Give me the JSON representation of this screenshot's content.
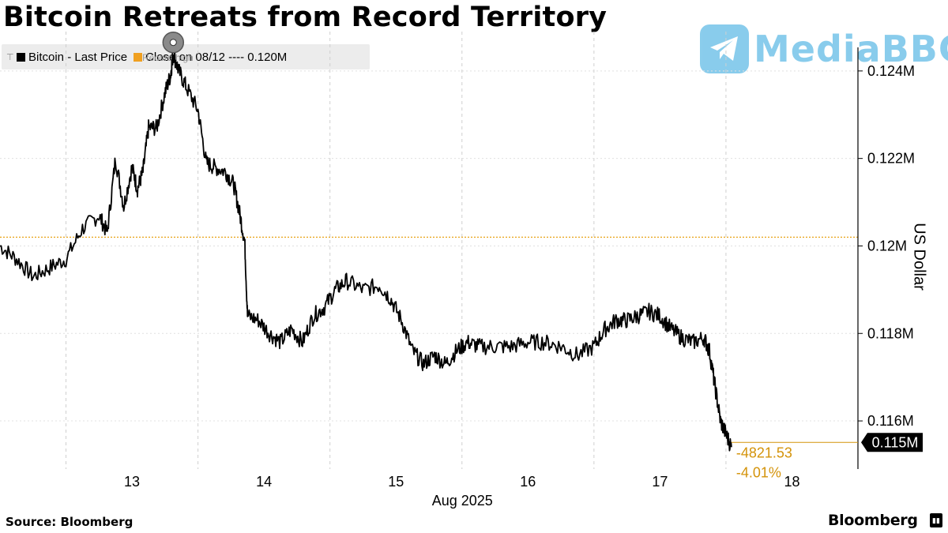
{
  "title": "Bitcoin Retreats from Record Territory",
  "legend": {
    "series_label": "Bitcoin - Last Price",
    "close_label": "Close on 08/12 ---- 0.120M"
  },
  "annotation": {
    "record_label": "Record high",
    "change_abs": "-4821.53",
    "change_pct": "-4.01%",
    "last_value_label": "0.115M"
  },
  "watermark": "MediaBBG",
  "ylabel": "US Dollar",
  "source": "Source: Bloomberg",
  "brand": "Bloomberg",
  "colors": {
    "line": "#000000",
    "close_ref": "#e8a317",
    "annotation": "#d4930a",
    "grid": "#cfcfcf"
  },
  "chart_data": {
    "type": "line",
    "title": "Bitcoin Retreats from Record Territory",
    "xlabel": "Aug 2025",
    "ylabel": "US Dollar",
    "x_ticks": [
      "13",
      "14",
      "15",
      "16",
      "17",
      "18"
    ],
    "y_ticks": [
      "0.116M",
      "0.118M",
      "0.12M",
      "0.122M",
      "0.124M"
    ],
    "ylim": [
      114900,
      124900
    ],
    "xlim": [
      "2025-08-12 12:00",
      "2025-08-18 24:00"
    ],
    "close_reference": {
      "date": "08/12",
      "value": 120200
    },
    "last_value": 115380,
    "series": [
      {
        "name": "Bitcoin - Last Price",
        "points": [
          [
            "2025-08-12 12:00",
            120000
          ],
          [
            "2025-08-12 15:00",
            119700
          ],
          [
            "2025-08-12 18:00",
            119300
          ],
          [
            "2025-08-12 21:00",
            119500
          ],
          [
            "2025-08-13 00:00",
            119700
          ],
          [
            "2025-08-13 03:00",
            120400
          ],
          [
            "2025-08-13 06:00",
            120700
          ],
          [
            "2025-08-13 07:30",
            120300
          ],
          [
            "2025-08-13 09:00",
            122000
          ],
          [
            "2025-08-13 10:30",
            120900
          ],
          [
            "2025-08-13 12:00",
            121800
          ],
          [
            "2025-08-13 13:00",
            121300
          ],
          [
            "2025-08-13 14:00",
            121700
          ],
          [
            "2025-08-13 15:00",
            122700
          ],
          [
            "2025-08-13 16:30",
            122700
          ],
          [
            "2025-08-13 18:00",
            123500
          ],
          [
            "2025-08-13 19:00",
            123900
          ],
          [
            "2025-08-13 19:30",
            124400
          ],
          [
            "2025-08-13 20:30",
            124000
          ],
          [
            "2025-08-13 22:00",
            123600
          ],
          [
            "2025-08-14 00:00",
            123100
          ],
          [
            "2025-08-14 01:30",
            121900
          ],
          [
            "2025-08-14 03:00",
            121800
          ],
          [
            "2025-08-14 05:00",
            121700
          ],
          [
            "2025-08-14 06:30",
            121400
          ],
          [
            "2025-08-14 07:30",
            120800
          ],
          [
            "2025-08-14 08:30",
            120100
          ],
          [
            "2025-08-14 09:00",
            118400
          ],
          [
            "2025-08-14 11:00",
            118300
          ],
          [
            "2025-08-14 13:00",
            118000
          ],
          [
            "2025-08-14 15:00",
            117800
          ],
          [
            "2025-08-14 17:00",
            118100
          ],
          [
            "2025-08-14 19:00",
            117800
          ],
          [
            "2025-08-14 21:00",
            118400
          ],
          [
            "2025-08-14 23:00",
            118600
          ],
          [
            "2025-08-15 01:00",
            119000
          ],
          [
            "2025-08-15 03:00",
            119200
          ],
          [
            "2025-08-15 06:00",
            119000
          ],
          [
            "2025-08-15 09:00",
            119100
          ],
          [
            "2025-08-15 11:00",
            118800
          ],
          [
            "2025-08-15 13:00",
            118300
          ],
          [
            "2025-08-15 15:00",
            117600
          ],
          [
            "2025-08-15 17:00",
            117300
          ],
          [
            "2025-08-15 19:00",
            117500
          ],
          [
            "2025-08-15 21:00",
            117300
          ],
          [
            "2025-08-15 23:00",
            117600
          ],
          [
            "2025-08-16 01:00",
            117800
          ],
          [
            "2025-08-16 03:00",
            117700
          ],
          [
            "2025-08-16 06:00",
            117700
          ],
          [
            "2025-08-16 09:00",
            117700
          ],
          [
            "2025-08-16 12:00",
            117800
          ],
          [
            "2025-08-16 15:00",
            117800
          ],
          [
            "2025-08-16 18:00",
            117700
          ],
          [
            "2025-08-16 21:00",
            117500
          ],
          [
            "2025-08-17 00:00",
            117700
          ],
          [
            "2025-08-17 02:00",
            118100
          ],
          [
            "2025-08-17 04:00",
            118300
          ],
          [
            "2025-08-17 06:00",
            118300
          ],
          [
            "2025-08-17 08:00",
            118400
          ],
          [
            "2025-08-17 10:00",
            118500
          ],
          [
            "2025-08-17 12:00",
            118400
          ],
          [
            "2025-08-17 14:00",
            118100
          ],
          [
            "2025-08-17 16:00",
            117900
          ],
          [
            "2025-08-17 18:00",
            117800
          ],
          [
            "2025-08-17 20:00",
            117900
          ],
          [
            "2025-08-17 21:00",
            117600
          ],
          [
            "2025-08-17 22:00",
            116800
          ],
          [
            "2025-08-17 23:00",
            116000
          ],
          [
            "2025-08-18 00:00",
            115700
          ],
          [
            "2025-08-18 01:00",
            115400
          ]
        ]
      }
    ]
  }
}
